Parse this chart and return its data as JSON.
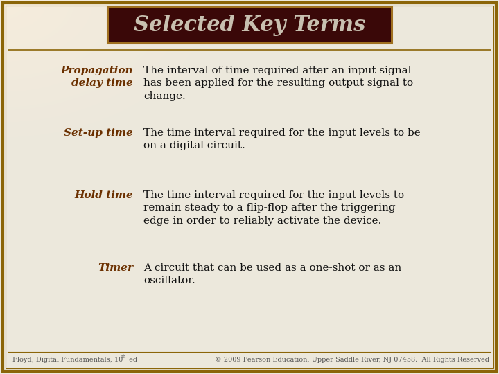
{
  "title": "Selected Key Terms",
  "background_color": "#ede8dc",
  "border_color": "#8B6508",
  "title_bg_color": "#3a0808",
  "title_text_color": "#c8c0b0",
  "term_color": "#6B3000",
  "body_color": "#111111",
  "footer_left": "Floyd, Digital Fundamentals, 10",
  "footer_left_super": "th",
  "footer_left2": " ed",
  "footer_right": "© 2009 Pearson Education, Upper Saddle River, NJ 07458.  All Rights Reserved",
  "terms": [
    {
      "term": "Propagation\ndelay time",
      "definition": "The interval of time required after an input signal\nhas been applied for the resulting output signal to\nchange."
    },
    {
      "term": "Set-up time",
      "definition": "The time interval required for the input levels to be\non a digital circuit."
    },
    {
      "term": "Hold time",
      "definition": "The time interval required for the input levels to\nremain steady to a flip-flop after the triggering\nedge in order to reliably activate the device."
    },
    {
      "term": "Timer",
      "definition": "A circuit that can be used as a one-shot or as an\noscillator."
    }
  ],
  "fig_width": 7.2,
  "fig_height": 5.4,
  "dpi": 100
}
